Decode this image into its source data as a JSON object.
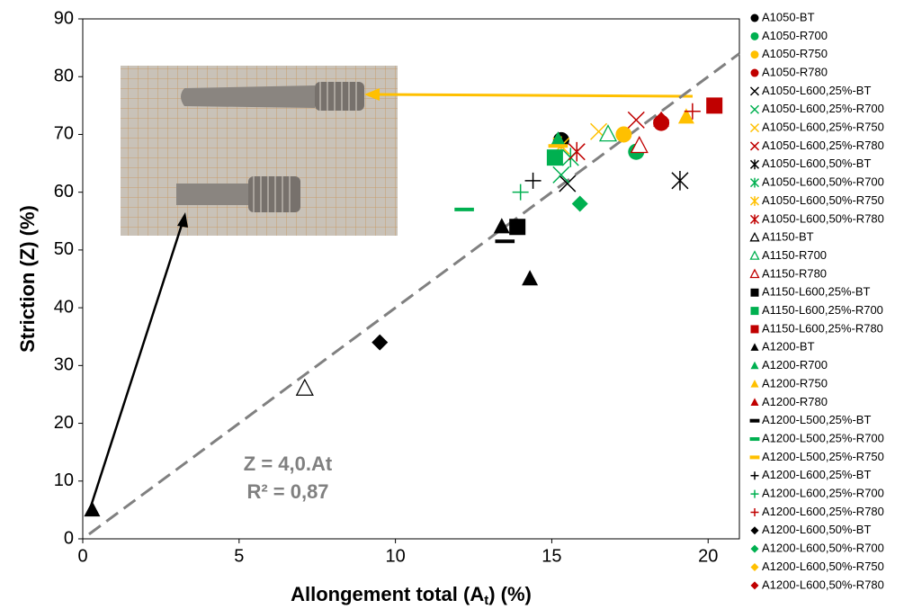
{
  "chart_data": {
    "type": "scatter",
    "ylabel": "Striction (Z) (%)",
    "xlabel": [
      "Allongement total (A",
      "t",
      ") (%)"
    ],
    "xlim": [
      0,
      21
    ],
    "ylim": [
      0,
      90
    ],
    "xticks": [
      0,
      5,
      10,
      15,
      20
    ],
    "yticks": [
      0,
      10,
      20,
      30,
      40,
      50,
      60,
      70,
      80,
      90
    ],
    "annotations": [
      "Z = 4,0.At",
      "R² = 0,87"
    ],
    "trendline": {
      "color": "#808080",
      "x": [
        0.2,
        21
      ],
      "values": [
        0.8,
        84
      ]
    },
    "series": [
      {
        "name": "A1050-BT",
        "color": "#000000",
        "marker": "circle",
        "x": [
          15.3
        ],
        "values": [
          69
        ]
      },
      {
        "name": "A1050-R700",
        "color": "#00b050",
        "marker": "circle",
        "x": [
          17.7
        ],
        "values": [
          67
        ]
      },
      {
        "name": "A1050-R750",
        "color": "#ffc000",
        "marker": "circle",
        "x": [
          17.3
        ],
        "values": [
          70
        ]
      },
      {
        "name": "A1050-R780",
        "color": "#c00000",
        "marker": "circle",
        "x": [
          18.5
        ],
        "values": [
          72
        ]
      },
      {
        "name": "A1050-L600,25%-BT",
        "color": "#000000",
        "marker": "x",
        "x": [
          15.5
        ],
        "values": [
          61.5
        ]
      },
      {
        "name": "A1050-L600,25%-R700",
        "color": "#00b050",
        "marker": "x",
        "x": [
          15.3
        ],
        "values": [
          63
        ]
      },
      {
        "name": "A1050-L600,25%-R750",
        "color": "#ffc000",
        "marker": "x",
        "x": [
          16.5
        ],
        "values": [
          70.5
        ]
      },
      {
        "name": "A1050-L600,25%-R780",
        "color": "#c00000",
        "marker": "x",
        "x": [
          17.7
        ],
        "values": [
          72.5
        ]
      },
      {
        "name": "A1050-L600,50%-BT",
        "color": "#000000",
        "marker": "asterisk",
        "x": [
          19.1
        ],
        "values": [
          62
        ]
      },
      {
        "name": "A1050-L600,50%-R700",
        "color": "#00b050",
        "marker": "asterisk",
        "x": [
          15.6
        ],
        "values": [
          66
        ]
      },
      {
        "name": "A1050-L600,50%-R750",
        "color": "#ffc000",
        "marker": "asterisk",
        "x": [
          15.3
        ],
        "values": [
          68
        ]
      },
      {
        "name": "A1050-L600,50%-R780",
        "color": "#c00000",
        "marker": "asterisk",
        "x": [
          15.8
        ],
        "values": [
          67
        ]
      },
      {
        "name": "A1150-BT",
        "color": "#000000",
        "marker": "triangle-open",
        "x": [
          7.1
        ],
        "values": [
          26
        ]
      },
      {
        "name": "A1150-R700",
        "color": "#00b050",
        "marker": "triangle-open",
        "x": [
          16.8
        ],
        "values": [
          70
        ]
      },
      {
        "name": "A1150-R780",
        "color": "#c00000",
        "marker": "triangle-open",
        "x": [
          17.8
        ],
        "values": [
          68
        ]
      },
      {
        "name": "A1150-L600,25%-BT",
        "color": "#000000",
        "marker": "square",
        "x": [
          13.9
        ],
        "values": [
          54
        ]
      },
      {
        "name": "A1150-L600,25%-R700",
        "color": "#00b050",
        "marker": "square",
        "x": [
          15.1
        ],
        "values": [
          66
        ]
      },
      {
        "name": "A1150-L600,25%-R780",
        "color": "#c00000",
        "marker": "square",
        "x": [
          20.2
        ],
        "values": [
          75
        ]
      },
      {
        "name": "A1200-BT",
        "color": "#000000",
        "marker": "triangle",
        "x": [
          0.3,
          13.4,
          14.3
        ],
        "values": [
          5,
          54,
          45
        ]
      },
      {
        "name": "A1200-R700",
        "color": "#00b050",
        "marker": "triangle",
        "x": [
          15.2
        ],
        "values": [
          69
        ]
      },
      {
        "name": "A1200-R750",
        "color": "#ffc000",
        "marker": "triangle",
        "x": [
          19.3
        ],
        "values": [
          73
        ]
      },
      {
        "name": "A1200-R780",
        "color": "#c00000",
        "marker": "triangle",
        "x": [
          18.5
        ],
        "values": [
          72.5
        ]
      },
      {
        "name": "A1200-L500,25%-BT",
        "color": "#000000",
        "marker": "dash",
        "x": [
          13.5
        ],
        "values": [
          51.5
        ]
      },
      {
        "name": "A1200-L500,25%-R700",
        "color": "#00b050",
        "marker": "dash",
        "x": [
          12.2
        ],
        "values": [
          57
        ]
      },
      {
        "name": "A1200-L500,25%-R750",
        "color": "#ffc000",
        "marker": "dash",
        "x": [
          15.2
        ],
        "values": [
          68
        ]
      },
      {
        "name": "A1200-L600,25%-BT",
        "color": "#000000",
        "marker": "plus",
        "x": [
          14.4
        ],
        "values": [
          62
        ]
      },
      {
        "name": "A1200-L600,25%-R700",
        "color": "#00b050",
        "marker": "plus",
        "x": [
          14
        ],
        "values": [
          60
        ]
      },
      {
        "name": "A1200-L600,25%-R780",
        "color": "#c00000",
        "marker": "plus",
        "x": [
          19.5
        ],
        "values": [
          74
        ]
      },
      {
        "name": "A1200-L600,50%-BT",
        "color": "#000000",
        "marker": "diamond",
        "x": [
          9.5
        ],
        "values": [
          34
        ]
      },
      {
        "name": "A1200-L600,50%-R700",
        "color": "#00b050",
        "marker": "diamond",
        "x": [
          15.9
        ],
        "values": [
          58
        ]
      },
      {
        "name": "A1200-L600,50%-R750",
        "color": "#ffc000",
        "marker": "diamond",
        "x": [
          17.3
        ],
        "values": [
          70
        ]
      },
      {
        "name": "A1200-L600,50%-R780",
        "color": "#c00000",
        "marker": "diamond",
        "x": [
          18.5
        ],
        "values": [
          72.5
        ]
      }
    ]
  }
}
